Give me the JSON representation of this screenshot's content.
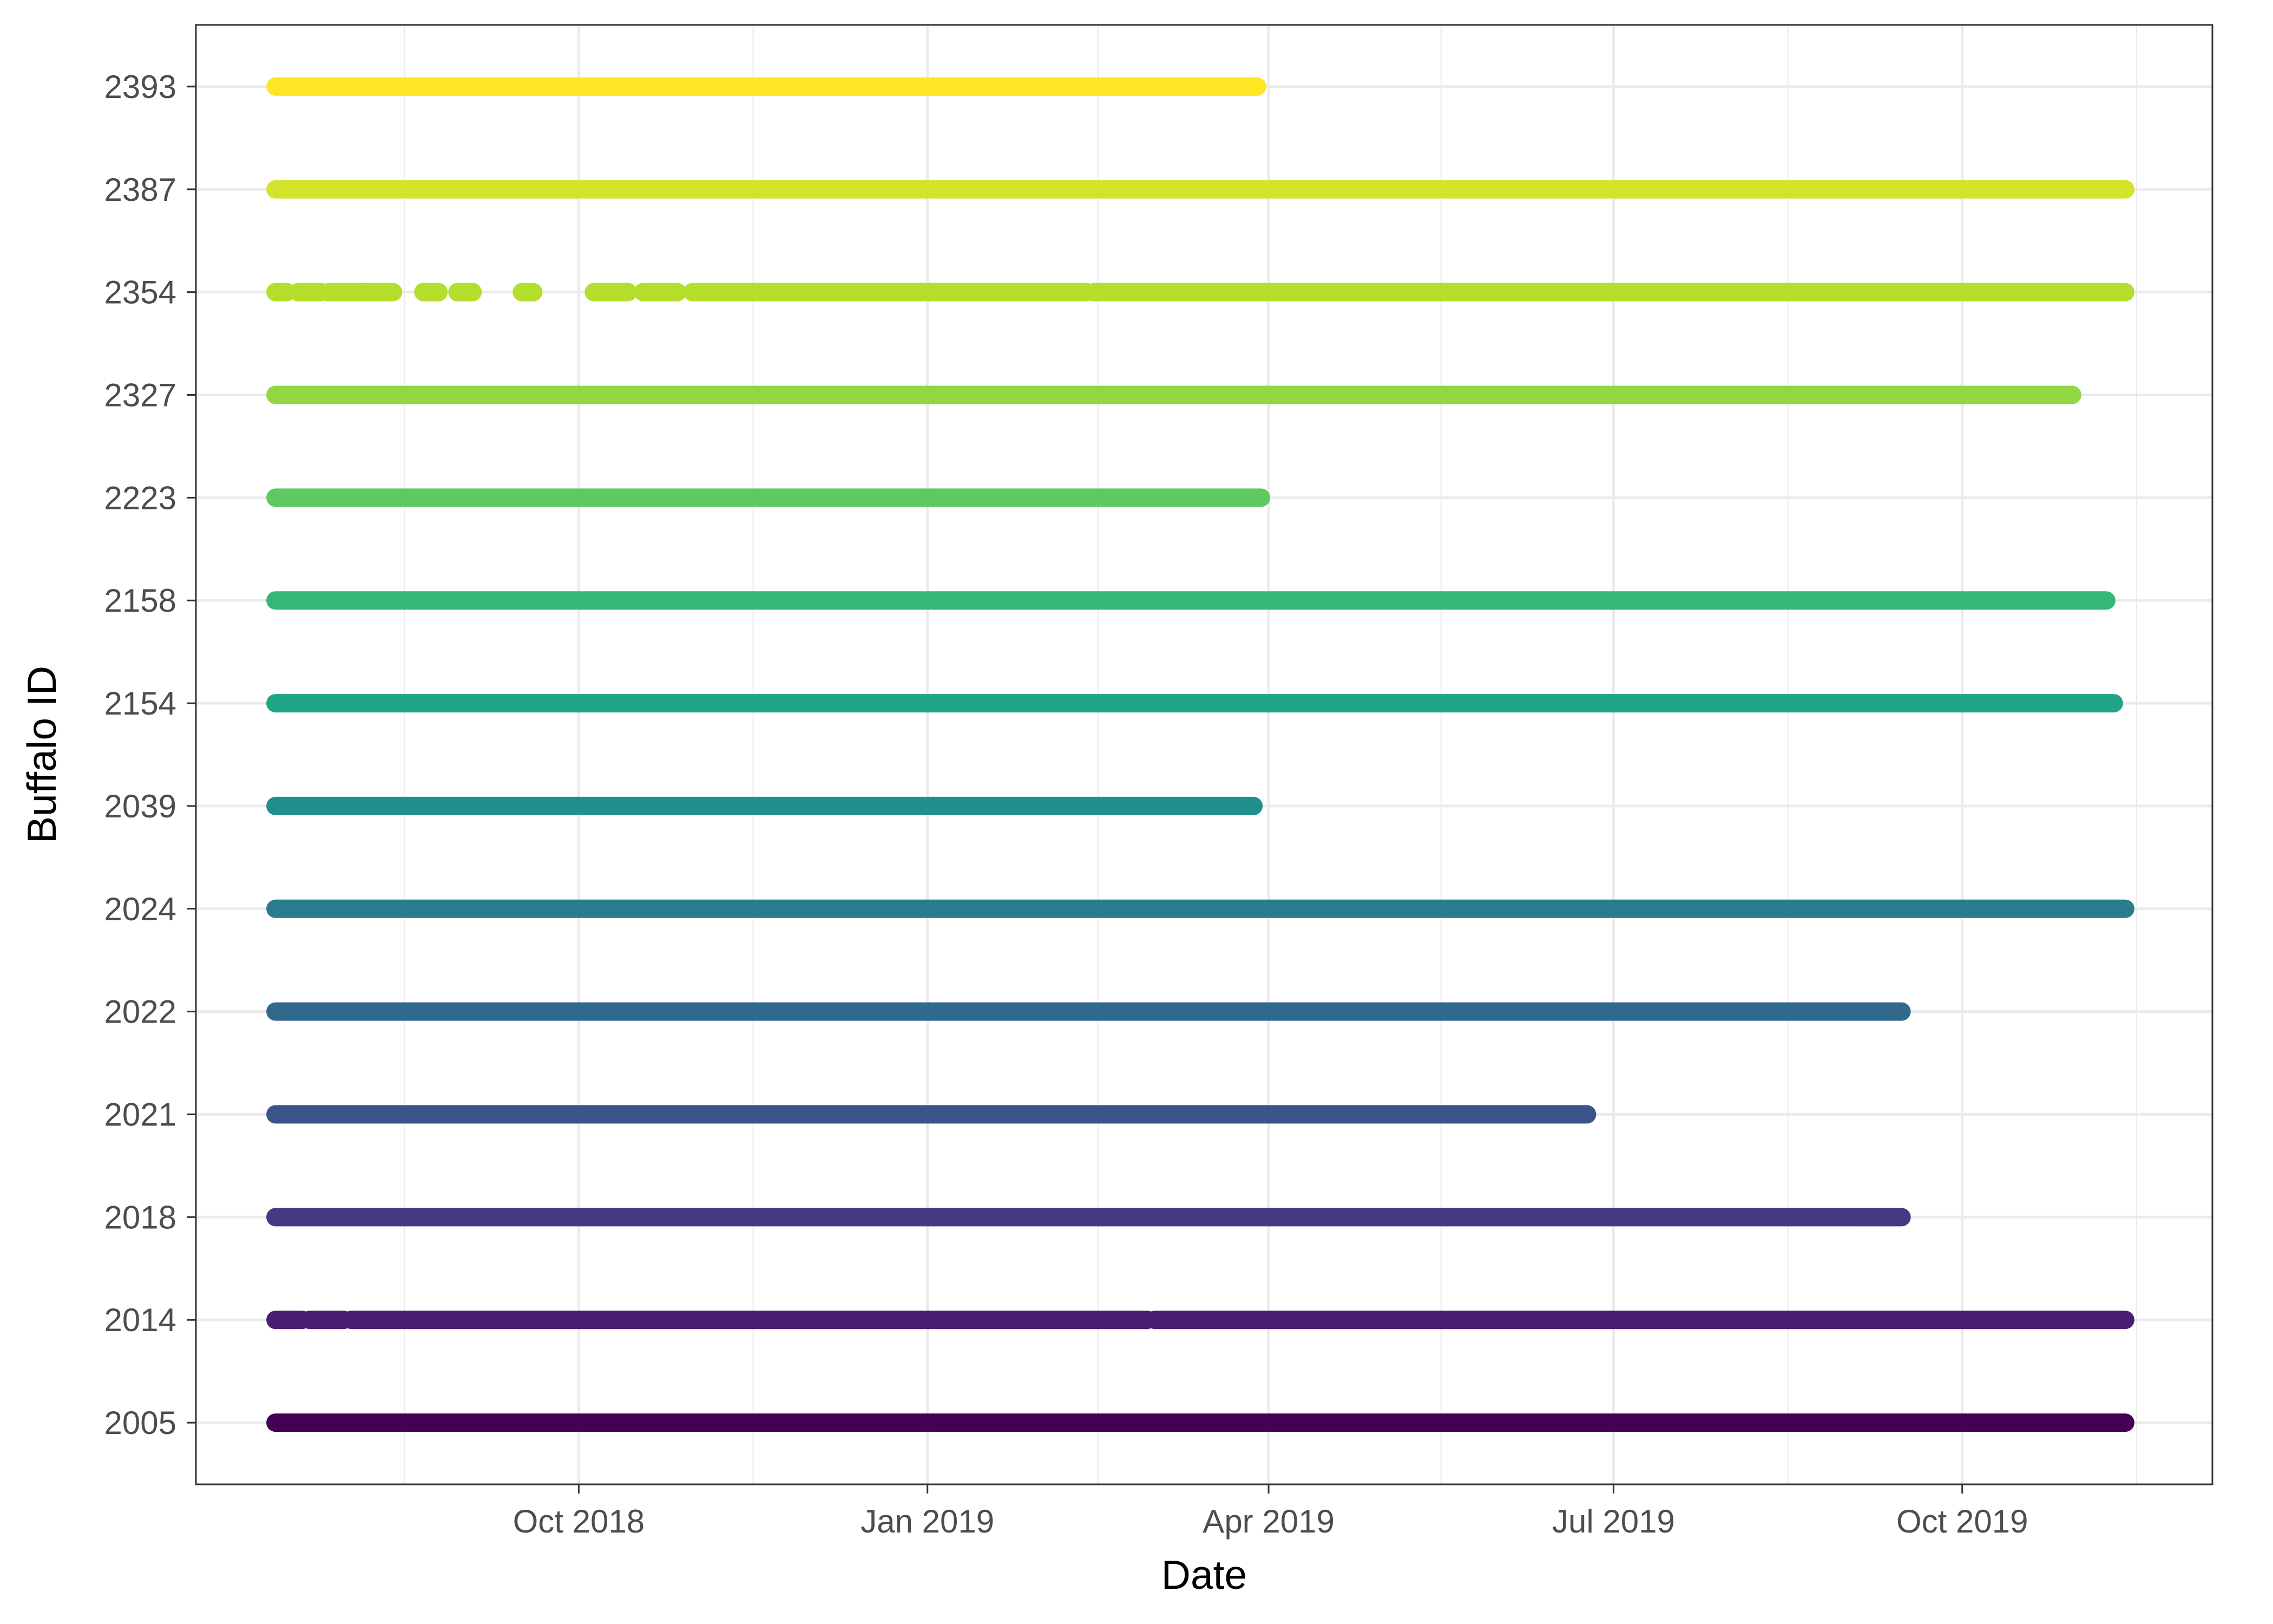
{
  "chart_data": {
    "type": "line",
    "title": "",
    "xlabel": "Date",
    "ylabel": "Buffalo ID",
    "x_ticks": [
      "Oct 2018",
      "Jan 2019",
      "Apr 2019",
      "Jul 2019",
      "Oct 2019"
    ],
    "x_tick_dates": [
      "2018-10-01",
      "2019-01-01",
      "2019-04-01",
      "2019-07-01",
      "2019-10-01"
    ],
    "xlim": [
      "2018-06-22",
      "2019-12-06"
    ],
    "grid": true,
    "legend": "none",
    "categories": [
      "2005",
      "2014",
      "2018",
      "2021",
      "2022",
      "2024",
      "2039",
      "2154",
      "2158",
      "2223",
      "2327",
      "2354",
      "2387",
      "2393"
    ],
    "series": [
      {
        "id": "2005",
        "color": "#440154",
        "segments": [
          [
            "2018-07-13",
            "2019-11-13"
          ]
        ]
      },
      {
        "id": "2014",
        "color": "#481F70",
        "segments": [
          [
            "2018-07-13",
            "2018-07-20"
          ],
          [
            "2018-07-22",
            "2018-07-31"
          ],
          [
            "2018-08-02",
            "2019-02-28"
          ],
          [
            "2019-03-02",
            "2019-11-13"
          ]
        ]
      },
      {
        "id": "2018",
        "color": "#443A83",
        "segments": [
          [
            "2018-07-13",
            "2019-09-15"
          ]
        ]
      },
      {
        "id": "2021",
        "color": "#3B528B",
        "segments": [
          [
            "2018-07-13",
            "2019-06-24"
          ]
        ]
      },
      {
        "id": "2022",
        "color": "#31688E",
        "segments": [
          [
            "2018-07-13",
            "2019-09-15"
          ]
        ]
      },
      {
        "id": "2024",
        "color": "#287C8E",
        "segments": [
          [
            "2018-07-13",
            "2019-11-13"
          ]
        ]
      },
      {
        "id": "2039",
        "color": "#21908C",
        "segments": [
          [
            "2018-07-13",
            "2019-03-28"
          ]
        ]
      },
      {
        "id": "2154",
        "color": "#20A486",
        "segments": [
          [
            "2018-07-13",
            "2019-11-10"
          ]
        ]
      },
      {
        "id": "2158",
        "color": "#35B779",
        "segments": [
          [
            "2018-07-13",
            "2019-11-08"
          ]
        ]
      },
      {
        "id": "2223",
        "color": "#5EC962",
        "segments": [
          [
            "2018-07-13",
            "2019-03-30"
          ]
        ]
      },
      {
        "id": "2327",
        "color": "#90D743",
        "segments": [
          [
            "2018-07-13",
            "2019-10-30"
          ]
        ]
      },
      {
        "id": "2354",
        "color": "#B4DE2C",
        "segments": [
          [
            "2018-07-13",
            "2018-07-16"
          ],
          [
            "2018-07-19",
            "2018-07-25"
          ],
          [
            "2018-07-27",
            "2018-08-05"
          ],
          [
            "2018-08-06",
            "2018-08-13"
          ],
          [
            "2018-08-21",
            "2018-08-25"
          ],
          [
            "2018-08-30",
            "2018-09-03"
          ],
          [
            "2018-09-16",
            "2018-09-19"
          ],
          [
            "2018-10-05",
            "2018-10-14"
          ],
          [
            "2018-10-18",
            "2018-10-27"
          ],
          [
            "2018-10-31",
            "2018-11-28"
          ],
          [
            "2018-11-29",
            "2019-01-07"
          ],
          [
            "2019-01-08",
            "2019-02-12"
          ],
          [
            "2019-02-14",
            "2019-11-13"
          ]
        ]
      },
      {
        "id": "2387",
        "color": "#D4E22A",
        "segments": [
          [
            "2018-07-13",
            "2019-11-13"
          ]
        ]
      },
      {
        "id": "2393",
        "color": "#FDE725",
        "segments": [
          [
            "2018-07-13",
            "2019-03-29"
          ]
        ]
      }
    ]
  }
}
